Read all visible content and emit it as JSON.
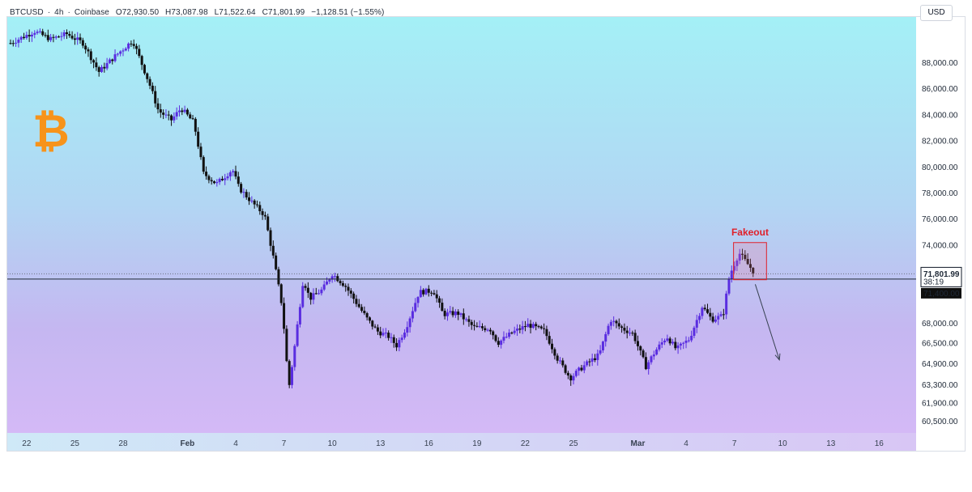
{
  "header": {
    "symbol": "BTCUSD",
    "separator": "·",
    "interval": "4h",
    "exchange": "Coinbase",
    "open": "O72,930.50",
    "high": "H73,087.98",
    "low": "L71,522.64",
    "close": "C71,801.99",
    "change": "−1,128.51 (−1.55%)"
  },
  "currency_label": "USD",
  "logo_glyph": "₿",
  "colors": {
    "up_candle": "#5a2de0",
    "down_candle": "#111111",
    "annotation_red": "#e0202a",
    "logo_orange": "#f7931a",
    "axis_badge_bg": "#0f0f0f"
  },
  "chart_data": {
    "type": "candlestick",
    "title": "",
    "xlabel": "",
    "ylabel": "",
    "ylim": [
      59600,
      91500
    ],
    "y_tick_labels": [
      "88,000.00",
      "86,000.00",
      "84,000.00",
      "82,000.00",
      "80,000.00",
      "78,000.00",
      "76,000.00",
      "74,000.00",
      "68,000.00",
      "66,500.00",
      "64,900.00",
      "63,300.00",
      "61,900.00",
      "60,500.00"
    ],
    "y_tick_values": [
      88000,
      86000,
      84000,
      82000,
      80000,
      78000,
      76000,
      74000,
      68000,
      66500,
      64900,
      63300,
      61900,
      60500
    ],
    "x_tick_labels": [
      "22",
      "25",
      "28",
      "Feb",
      "4",
      "7",
      "10",
      "13",
      "16",
      "19",
      "22",
      "25",
      "Mar",
      "4",
      "7",
      "10",
      "13",
      "16"
    ],
    "x_tick_days": [
      0,
      3,
      6,
      10,
      13,
      16,
      19,
      22,
      25,
      28,
      31,
      34,
      38,
      41,
      44,
      47,
      50,
      53
    ],
    "x_range_days": [
      -1.2,
      55.3
    ],
    "last_price": "71,801.99",
    "last_price_value": 71801.99,
    "countdown": "38:19",
    "support_level_label": "71,400.00",
    "support_level_value": 71400,
    "annotation": "Fakeout",
    "projection_target": {
      "day": 46.8,
      "price": 65200
    },
    "key_points": [
      [
        -1.0,
        89500
      ],
      [
        0.5,
        90400
      ],
      [
        1.5,
        89800
      ],
      [
        2.5,
        90200
      ],
      [
        3.5,
        89500
      ],
      [
        4.5,
        87300
      ],
      [
        5.5,
        88500
      ],
      [
        6.6,
        89700
      ],
      [
        7.6,
        86500
      ],
      [
        8.2,
        84300
      ],
      [
        9.0,
        83600
      ],
      [
        9.6,
        84500
      ],
      [
        10.4,
        83400
      ],
      [
        11.0,
        79500
      ],
      [
        11.8,
        78700
      ],
      [
        12.8,
        79800
      ],
      [
        13.2,
        78400
      ],
      [
        14.0,
        77300
      ],
      [
        14.8,
        76300
      ],
      [
        15.4,
        72700
      ],
      [
        15.9,
        69200
      ],
      [
        16.3,
        63000
      ],
      [
        16.6,
        65600
      ],
      [
        17.2,
        71400
      ],
      [
        17.6,
        69900
      ],
      [
        18.4,
        70600
      ],
      [
        19.0,
        71800
      ],
      [
        19.8,
        70900
      ],
      [
        20.6,
        69400
      ],
      [
        21.2,
        68300
      ],
      [
        21.8,
        67400
      ],
      [
        22.5,
        67000
      ],
      [
        23.0,
        66300
      ],
      [
        23.6,
        67700
      ],
      [
        24.4,
        70400
      ],
      [
        25.3,
        70500
      ],
      [
        25.9,
        68700
      ],
      [
        26.8,
        68800
      ],
      [
        27.8,
        67700
      ],
      [
        28.8,
        67600
      ],
      [
        29.3,
        66500
      ],
      [
        30.2,
        67300
      ],
      [
        31.2,
        67900
      ],
      [
        32.2,
        67400
      ],
      [
        33.0,
        65300
      ],
      [
        33.8,
        63800
      ],
      [
        34.6,
        64700
      ],
      [
        35.6,
        65600
      ],
      [
        36.3,
        68300
      ],
      [
        36.9,
        67700
      ],
      [
        37.7,
        67200
      ],
      [
        38.5,
        64700
      ],
      [
        39.1,
        65900
      ],
      [
        39.8,
        67000
      ],
      [
        40.4,
        66000
      ],
      [
        41.2,
        66800
      ],
      [
        42.0,
        69300
      ],
      [
        42.6,
        68300
      ],
      [
        43.3,
        68600
      ],
      [
        43.7,
        71700
      ],
      [
        44.3,
        73400
      ],
      [
        44.8,
        72600
      ],
      [
        45.3,
        71800
      ]
    ]
  }
}
